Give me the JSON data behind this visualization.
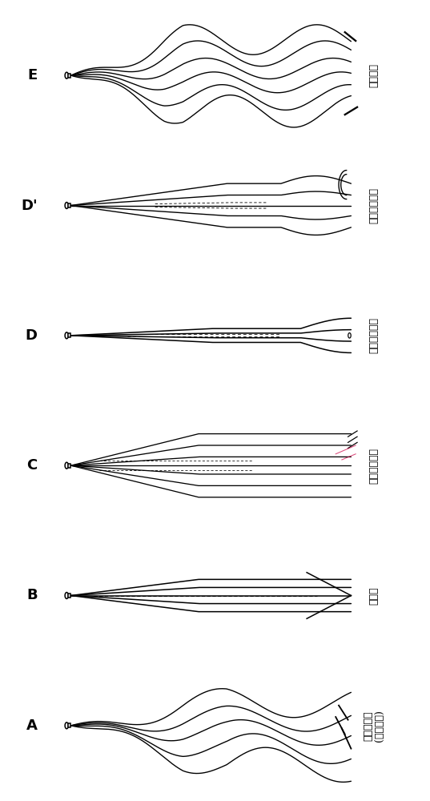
{
  "panels": [
    "E",
    "D'",
    "D",
    "C",
    "B",
    "A"
  ],
  "labels_right": [
    "卷曲恢复",
    "轻微卷曲恢复",
    "轻微卷曲恢复",
    "没有卷曲恢复",
    "直的束",
    "未处理的束\n(开始状态)"
  ],
  "bg_color": "#ffffff",
  "border_color": "#000000",
  "line_color": "#000000",
  "label_fontsize": 9,
  "panel_label_fontsize": 13
}
